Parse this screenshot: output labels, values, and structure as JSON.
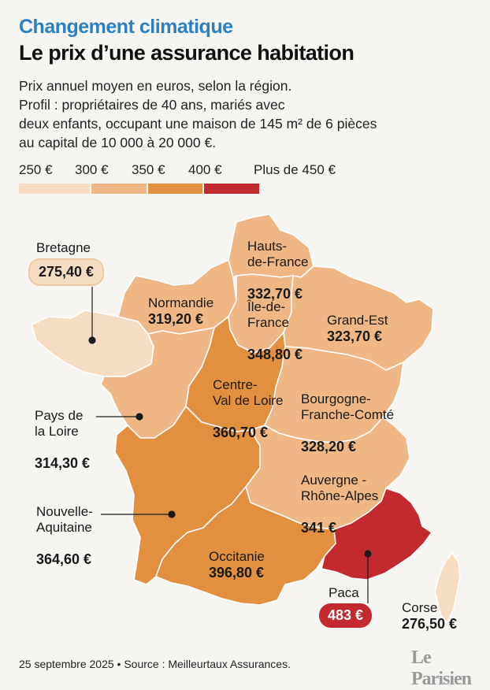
{
  "header": {
    "kicker": "Changement climatique",
    "title": "Le prix d’une assurance habitation",
    "subtitle_lines": [
      "Prix annuel moyen en euros, selon la région.",
      "Profil : propriétaires de 40 ans, mariés avec",
      "deux enfants, occupant une maison de 145 m² de 6 pièces",
      "au capital de 10 000 à 20 000 €."
    ]
  },
  "legend": {
    "labels": [
      "250 €",
      "300 €",
      "350 €",
      "400 €",
      "Plus de 450 €"
    ],
    "colors": [
      "#f6ddc1",
      "#efb785",
      "#e2903f",
      "#c22a2f"
    ]
  },
  "colors": {
    "background": "#f6f5f2",
    "kicker": "#2e7fc0",
    "border": "#ffffff",
    "leader_line": "#1a1a1a"
  },
  "regions": [
    {
      "id": "bretagne",
      "name": "Bretagne",
      "value": "275,40 €",
      "price": 275.4
    },
    {
      "id": "normandie",
      "name": "Normandie",
      "value": "319,20 €",
      "price": 319.2
    },
    {
      "id": "hauts-de-france",
      "name": "Hauts-\nde-France",
      "value": "332,70 €",
      "price": 332.7
    },
    {
      "id": "ile-de-france",
      "name": "Île-de-\nFrance",
      "value": "348,80 €",
      "price": 348.8
    },
    {
      "id": "grand-est",
      "name": "Grand-Est",
      "value": "323,70 €",
      "price": 323.7
    },
    {
      "id": "pays-de-la-loire",
      "name": "Pays de\nla Loire",
      "value": "314,30 €",
      "price": 314.3
    },
    {
      "id": "centre-val-de-loire",
      "name": "Centre-\nVal de Loire",
      "value": "360,70 €",
      "price": 360.7
    },
    {
      "id": "bourgogne-franche-comte",
      "name": "Bourgogne-\nFranche-Comté",
      "value": "328,20 €",
      "price": 328.2
    },
    {
      "id": "nouvelle-aquitaine",
      "name": "Nouvelle-\nAquitaine",
      "value": "364,60 €",
      "price": 364.6
    },
    {
      "id": "auvergne-rhone-alpes",
      "name": "Auvergne -\nRhône-Alpes",
      "value": "341 €",
      "price": 341
    },
    {
      "id": "occitanie",
      "name": "Occitanie",
      "value": "396,80 €",
      "price": 396.8
    },
    {
      "id": "paca",
      "name": "Paca",
      "value": "483 €",
      "price": 483
    },
    {
      "id": "corse",
      "name": "Corse",
      "value": "276,50 €",
      "price": 276.5
    }
  ],
  "footer": {
    "source": "25 septembre 2025 • Source : Meilleurtaux Assurances.",
    "logo": "Le Parisien"
  }
}
